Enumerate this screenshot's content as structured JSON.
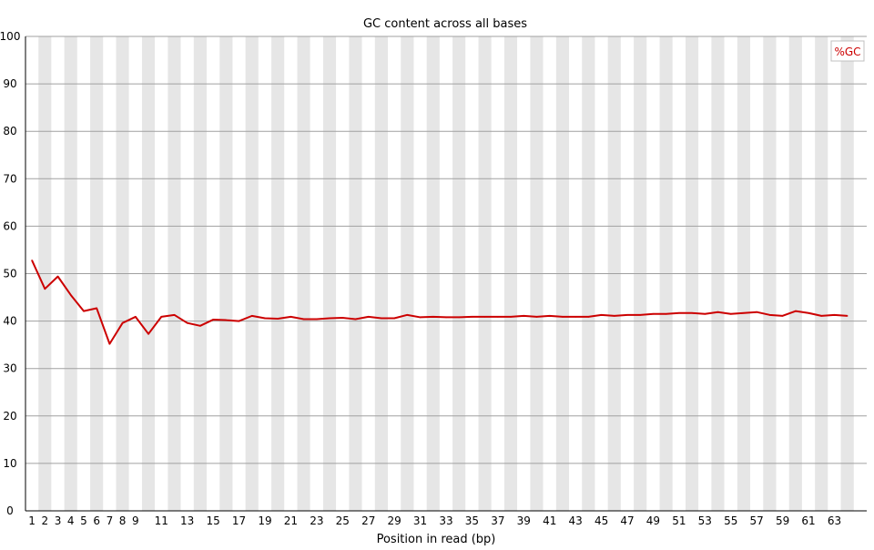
{
  "chart_data": {
    "type": "line",
    "title": "GC content across all bases",
    "xlabel": "Position in read (bp)",
    "ylabel": "",
    "ylim": [
      0,
      100
    ],
    "yticks": [
      0,
      10,
      20,
      30,
      40,
      50,
      60,
      70,
      80,
      90,
      100
    ],
    "xticks": [
      1,
      2,
      3,
      4,
      5,
      6,
      7,
      8,
      9,
      11,
      13,
      15,
      17,
      19,
      21,
      23,
      25,
      27,
      29,
      31,
      33,
      35,
      37,
      39,
      41,
      43,
      45,
      47,
      49,
      51,
      53,
      55,
      57,
      59,
      61,
      63
    ],
    "x": [
      1,
      2,
      3,
      4,
      5,
      6,
      7,
      8,
      9,
      10,
      11,
      12,
      13,
      14,
      15,
      16,
      17,
      18,
      19,
      20,
      21,
      22,
      23,
      24,
      25,
      26,
      27,
      28,
      29,
      30,
      31,
      32,
      33,
      34,
      35,
      36,
      37,
      38,
      39,
      40,
      41,
      42,
      43,
      44,
      45,
      46,
      47,
      48,
      49,
      50,
      51,
      52,
      53,
      54,
      55,
      56,
      57,
      58,
      59,
      60,
      61,
      62,
      63,
      64
    ],
    "grid": true,
    "legend_position": "top-right",
    "series": [
      {
        "name": "%GC",
        "color": "#cc0000",
        "values": [
          52.8,
          46.8,
          49.4,
          45.5,
          42.1,
          42.7,
          35.2,
          39.6,
          40.9,
          37.3,
          40.9,
          41.3,
          39.6,
          39.0,
          40.3,
          40.2,
          40.0,
          41.1,
          40.6,
          40.5,
          40.9,
          40.4,
          40.4,
          40.6,
          40.7,
          40.4,
          40.9,
          40.6,
          40.6,
          41.3,
          40.8,
          40.9,
          40.8,
          40.8,
          40.9,
          40.9,
          40.9,
          40.9,
          41.1,
          40.9,
          41.1,
          40.9,
          40.9,
          40.9,
          41.3,
          41.1,
          41.3,
          41.3,
          41.5,
          41.5,
          41.7,
          41.7,
          41.5,
          41.9,
          41.5,
          41.7,
          41.9,
          41.3,
          41.1,
          42.1,
          41.7,
          41.1,
          41.3,
          41.1
        ]
      }
    ],
    "colors": {
      "stripe_odd": "#e6e6e6",
      "stripe_even": "#ffffff",
      "grid": "#a0a0a0",
      "axis": "#000000",
      "legend_border": "#c0c0c0"
    }
  }
}
